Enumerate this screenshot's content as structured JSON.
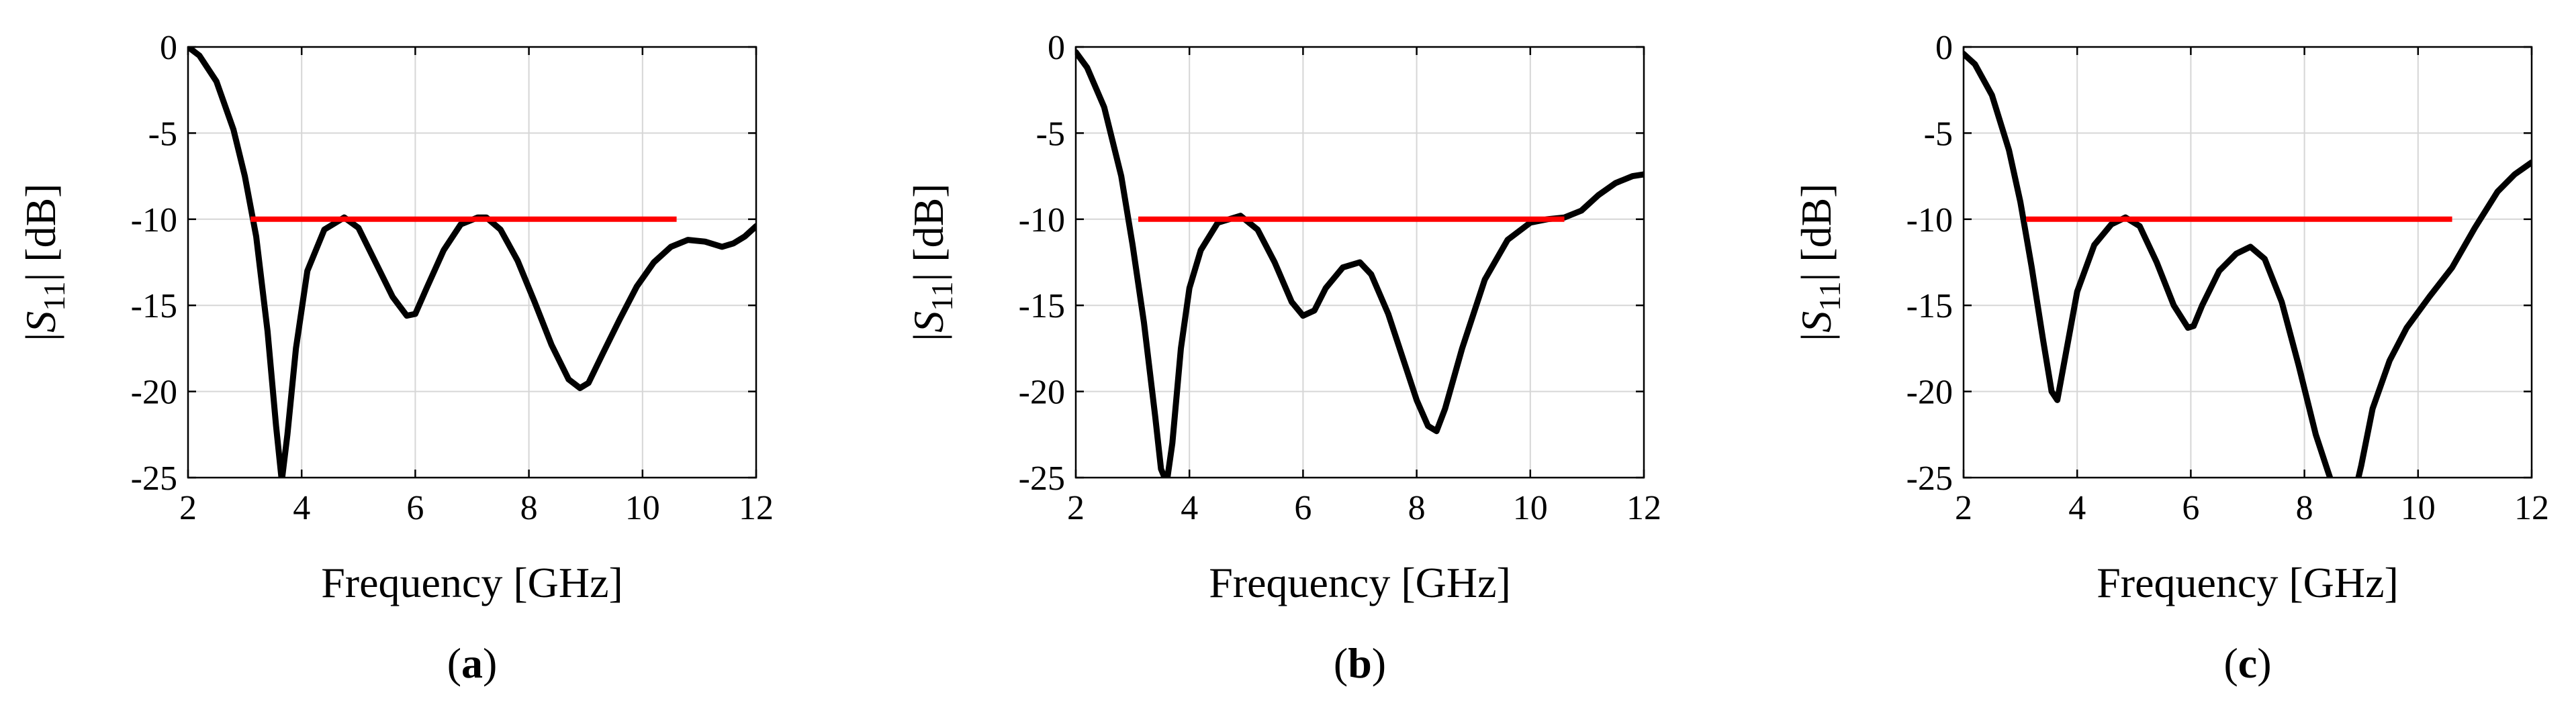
{
  "chart_data": [
    {
      "type": "line",
      "panel_label": "a",
      "xlabel": "Frequency [GHz]",
      "ylabel_text": "|S11| [dB]",
      "ylabel_parts": {
        "bar_left": "|",
        "symbol": "S",
        "subscript": "11",
        "bar_right": "|",
        "unit": " [dB]"
      },
      "xlim": [
        2,
        12
      ],
      "ylim": [
        -25,
        0
      ],
      "xticks": [
        2,
        4,
        6,
        8,
        10,
        12
      ],
      "yticks": [
        0,
        -5,
        -10,
        -15,
        -20,
        -25
      ],
      "grid": true,
      "series": [
        {
          "name": "|S11|",
          "color": "#000000",
          "x": [
            2.0,
            2.2,
            2.5,
            2.8,
            3.0,
            3.2,
            3.4,
            3.55,
            3.65,
            3.75,
            3.9,
            4.1,
            4.4,
            4.75,
            5.0,
            5.3,
            5.6,
            5.85,
            6.0,
            6.2,
            6.5,
            6.8,
            7.1,
            7.25,
            7.5,
            7.8,
            8.1,
            8.4,
            8.7,
            8.9,
            9.05,
            9.3,
            9.6,
            9.9,
            10.2,
            10.5,
            10.8,
            11.1,
            11.4,
            11.6,
            11.8,
            12.0
          ],
          "y": [
            0,
            -0.5,
            -2.0,
            -4.8,
            -7.5,
            -11.0,
            -16.5,
            -22.0,
            -25.2,
            -22.5,
            -17.5,
            -13.0,
            -10.6,
            -9.9,
            -10.5,
            -12.5,
            -14.5,
            -15.6,
            -15.5,
            -14.0,
            -11.8,
            -10.3,
            -9.9,
            -9.9,
            -10.6,
            -12.4,
            -14.8,
            -17.3,
            -19.3,
            -19.8,
            -19.5,
            -17.8,
            -15.8,
            -13.9,
            -12.5,
            -11.6,
            -11.2,
            -11.3,
            -11.6,
            -11.4,
            -11.0,
            -10.4
          ]
        },
        {
          "name": "-10 dB reference",
          "color": "#ff0000",
          "x": [
            3.1,
            10.6
          ],
          "y": [
            -10,
            -10
          ]
        }
      ]
    },
    {
      "type": "line",
      "panel_label": "b",
      "xlabel": "Frequency [GHz]",
      "ylabel_text": "|S11| [dB]",
      "ylabel_parts": {
        "bar_left": "|",
        "symbol": "S",
        "subscript": "11",
        "bar_right": "|",
        "unit": " [dB]"
      },
      "xlim": [
        2,
        12
      ],
      "ylim": [
        -25,
        0
      ],
      "xticks": [
        2,
        4,
        6,
        8,
        10,
        12
      ],
      "yticks": [
        0,
        -5,
        -10,
        -15,
        -20,
        -25
      ],
      "grid": true,
      "series": [
        {
          "name": "|S11|",
          "color": "#000000",
          "x": [
            2.0,
            2.2,
            2.5,
            2.8,
            3.0,
            3.2,
            3.4,
            3.5,
            3.6,
            3.7,
            3.85,
            4.0,
            4.2,
            4.5,
            4.9,
            5.2,
            5.5,
            5.8,
            6.0,
            6.2,
            6.4,
            6.7,
            7.0,
            7.2,
            7.5,
            7.8,
            8.0,
            8.2,
            8.35,
            8.5,
            8.8,
            9.2,
            9.6,
            10.0,
            10.3,
            10.6,
            10.9,
            11.2,
            11.5,
            11.8,
            12.0
          ],
          "y": [
            -0.3,
            -1.2,
            -3.5,
            -7.5,
            -11.5,
            -16.0,
            -21.5,
            -24.5,
            -25.3,
            -23.0,
            -17.5,
            -14.0,
            -11.8,
            -10.2,
            -9.8,
            -10.6,
            -12.5,
            -14.8,
            -15.6,
            -15.3,
            -14.0,
            -12.8,
            -12.5,
            -13.2,
            -15.5,
            -18.5,
            -20.5,
            -22.0,
            -22.3,
            -21.0,
            -17.5,
            -13.5,
            -11.2,
            -10.2,
            -10.0,
            -9.9,
            -9.5,
            -8.6,
            -7.9,
            -7.5,
            -7.4
          ]
        },
        {
          "name": "-10 dB reference",
          "color": "#ff0000",
          "x": [
            3.1,
            10.6
          ],
          "y": [
            -10,
            -10
          ]
        }
      ]
    },
    {
      "type": "line",
      "panel_label": "c",
      "xlabel": "Frequency [GHz]",
      "ylabel_text": "|S11| [dB]",
      "ylabel_parts": {
        "bar_left": "|",
        "symbol": "S",
        "subscript": "11",
        "bar_right": "|",
        "unit": " [dB]"
      },
      "xlim": [
        2,
        12
      ],
      "ylim": [
        -25,
        0
      ],
      "xticks": [
        2,
        4,
        6,
        8,
        10,
        12
      ],
      "yticks": [
        0,
        -5,
        -10,
        -15,
        -20,
        -25
      ],
      "grid": true,
      "series": [
        {
          "name": "|S11|",
          "color": "#000000",
          "x": [
            2.0,
            2.2,
            2.5,
            2.8,
            3.0,
            3.2,
            3.4,
            3.55,
            3.65,
            3.8,
            4.0,
            4.3,
            4.6,
            4.85,
            5.1,
            5.4,
            5.7,
            5.95,
            6.05,
            6.2,
            6.5,
            6.8,
            7.05,
            7.3,
            7.6,
            7.9,
            8.2,
            8.4,
            8.45,
            8.5,
            8.9,
            8.95,
            9.0,
            9.2,
            9.5,
            9.8,
            10.2,
            10.6,
            11.0,
            11.4,
            11.7,
            12.0
          ],
          "y": [
            -0.4,
            -1.0,
            -2.8,
            -6.0,
            -9.0,
            -12.8,
            -17.0,
            -20.0,
            -20.5,
            -17.8,
            -14.2,
            -11.5,
            -10.3,
            -9.9,
            -10.4,
            -12.5,
            -15.0,
            -16.3,
            -16.2,
            -15.0,
            -13.0,
            -12.0,
            -11.6,
            -12.3,
            -14.8,
            -18.5,
            -22.5,
            -24.5,
            -25.0,
            -25.5,
            -25.5,
            -25.0,
            -24.3,
            -21.0,
            -18.2,
            -16.3,
            -14.5,
            -12.8,
            -10.5,
            -8.4,
            -7.4,
            -6.7
          ]
        },
        {
          "name": "-10 dB reference",
          "color": "#ff0000",
          "x": [
            3.1,
            10.6
          ],
          "y": [
            -10,
            -10
          ]
        }
      ]
    }
  ]
}
